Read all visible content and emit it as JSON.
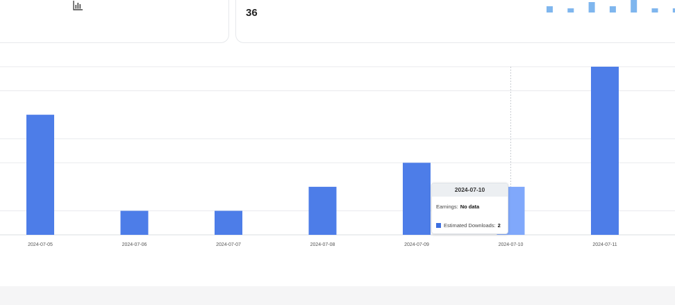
{
  "stat": {
    "value": "36"
  },
  "icons": {
    "chart": "bar-chart-icon"
  },
  "colors": {
    "bar": "#4d7de8",
    "bar_hover": "#80a8fb",
    "sparkline": "#7fb6ee",
    "grid": "#e8eaed"
  },
  "sparkline": {
    "values": [
      3,
      2,
      5,
      3,
      6,
      2,
      2
    ]
  },
  "chart_data": {
    "type": "bar",
    "categories": [
      "2024-07-05",
      "2024-07-06",
      "2024-07-07",
      "2024-07-08",
      "2024-07-09",
      "2024-07-10",
      "2024-07-11"
    ],
    "series": [
      {
        "name": "Estimated Downloads",
        "values": [
          5,
          1,
          1,
          2,
          3,
          2,
          7
        ]
      }
    ],
    "ylim": [
      0,
      7
    ],
    "grid": true,
    "highlighted_category": "2024-07-10"
  },
  "tooltip": {
    "title": "2024-07-10",
    "earnings_label": "Earnings:",
    "earnings_value": "No data",
    "downloads_label": "Estimated Downloads:",
    "downloads_value": "2"
  }
}
